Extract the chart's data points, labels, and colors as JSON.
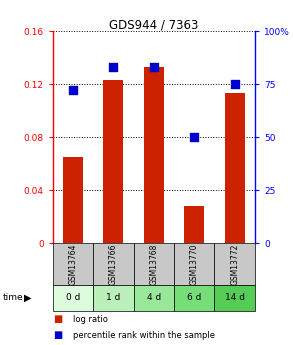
{
  "title": "GDS944 / 7363",
  "samples": [
    "GSM13764",
    "GSM13766",
    "GSM13768",
    "GSM13770",
    "GSM13772"
  ],
  "time_labels": [
    "0 d",
    "1 d",
    "4 d",
    "6 d",
    "14 d"
  ],
  "log_ratio": [
    0.065,
    0.123,
    0.133,
    0.028,
    0.113
  ],
  "percentile_rank": [
    72,
    83,
    83,
    50,
    75
  ],
  "bar_color": "#cc2200",
  "square_color": "#0000cc",
  "ylim_left": [
    0,
    0.16
  ],
  "ylim_right": [
    0,
    100
  ],
  "yticks_left": [
    0,
    0.04,
    0.08,
    0.12,
    0.16
  ],
  "ytick_labels_left": [
    "0",
    "0.04",
    "0.08",
    "0.12",
    "0.16"
  ],
  "yticks_right": [
    0,
    25,
    50,
    75,
    100
  ],
  "ytick_labels_right": [
    "0",
    "25",
    "50",
    "75",
    "100%"
  ],
  "grid_color": "#000000",
  "time_colors": [
    "#ddfcdd",
    "#bbf0bb",
    "#99e899",
    "#77dd77",
    "#55cc55"
  ],
  "gsm_bg_color": "#c8c8c8",
  "bar_width": 0.5,
  "legend_labels": [
    "log ratio",
    "percentile rank within the sample"
  ],
  "legend_colors": [
    "#cc2200",
    "#0000cc"
  ]
}
